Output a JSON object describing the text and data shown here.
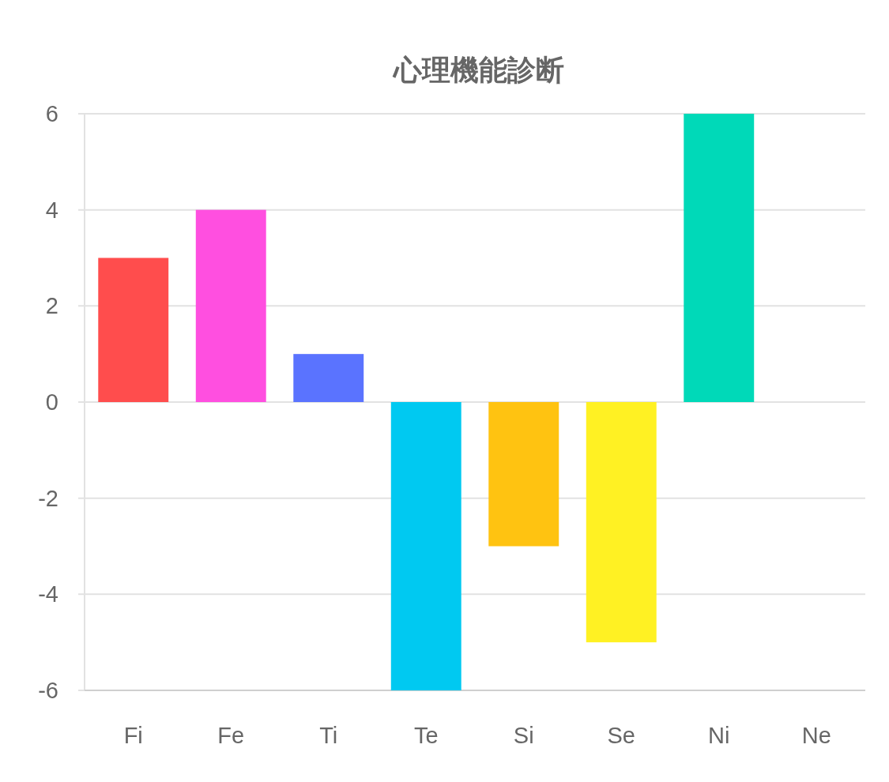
{
  "chart_data": {
    "type": "bar",
    "title": "心理機能診断",
    "categories": [
      "Fi",
      "Fe",
      "Ti",
      "Te",
      "Si",
      "Se",
      "Ni",
      "Ne"
    ],
    "values": [
      3,
      4,
      1,
      -6,
      -3,
      -5,
      6,
      0
    ],
    "colors": [
      "#ff4d4d",
      "#ff4fe0",
      "#5a73ff",
      "#00c9f1",
      "#ffc311",
      "#fff123",
      "#00d9b8",
      "#9c6bff"
    ],
    "ylim": [
      -6,
      6
    ],
    "yticks": [
      -6,
      -4,
      -2,
      0,
      2,
      4,
      6
    ],
    "grid": "y"
  }
}
